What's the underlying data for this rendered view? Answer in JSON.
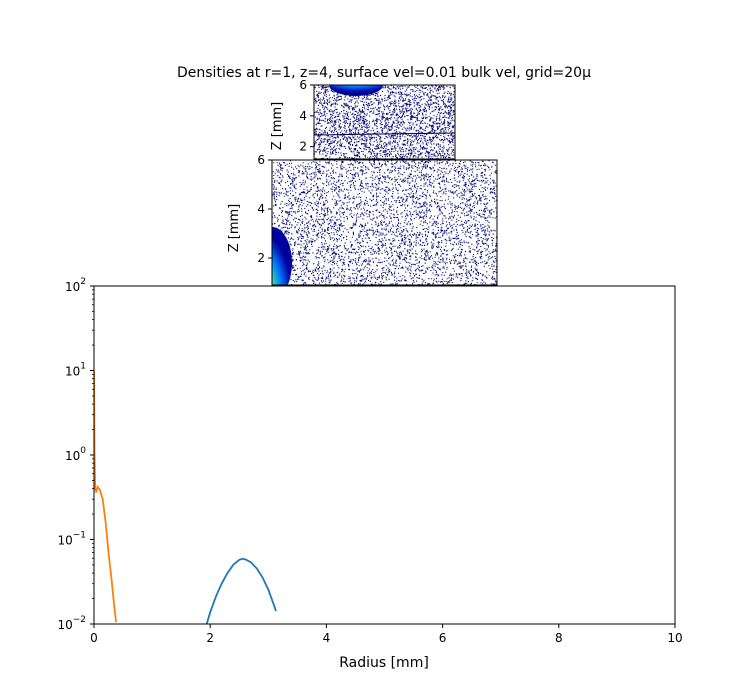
{
  "title": "Densities at r=1, z=4, surface vel=0.01 bulk vel, grid=20μ",
  "colors": {
    "blue": "#1f77b4",
    "orange": "#ff7f0e",
    "dot": "#0a0a78"
  },
  "chart_data": [
    {
      "type": "line",
      "xlabel": "Radius [mm]",
      "ylabel": "",
      "xlim": [
        0,
        10
      ],
      "ylim": [
        0.01,
        100
      ],
      "yscale": "log",
      "x_ticks": [
        0,
        2,
        4,
        6,
        8,
        10
      ],
      "x_tick_labels": [
        "0",
        "2",
        "4",
        "6",
        "8",
        "10"
      ],
      "y_ticks": [
        0.01,
        0.1,
        1,
        10,
        100
      ],
      "y_tick_labels": [
        "10^-2",
        "10^-1",
        "10^0",
        "10^1",
        "10^2"
      ],
      "series": [
        {
          "color": "#1f77b4",
          "x": [
            1.94,
            2.0,
            2.1,
            2.2,
            2.3,
            2.4,
            2.5,
            2.55,
            2.6,
            2.7,
            2.8,
            2.9,
            3.0,
            3.1,
            3.13
          ],
          "y": [
            0.01,
            0.0138,
            0.0213,
            0.0303,
            0.0404,
            0.0504,
            0.0575,
            0.059,
            0.0585,
            0.0537,
            0.0455,
            0.0356,
            0.0255,
            0.0165,
            0.0143
          ]
        },
        {
          "color": "#ff7f0e",
          "x": [
            0.0,
            0.01,
            0.02,
            0.04,
            0.06,
            0.1,
            0.15,
            0.2,
            0.25,
            0.3,
            0.35,
            0.38
          ],
          "y": [
            10.0,
            1.0,
            0.4,
            0.36,
            0.42,
            0.39,
            0.3,
            0.16,
            0.07,
            0.035,
            0.016,
            0.0105
          ]
        }
      ]
    },
    {
      "type": "heatmap",
      "ylabel": "Z [mm]",
      "y_ticks": [
        2,
        4,
        6
      ],
      "y_tick_labels": [
        "2",
        "4",
        "6"
      ],
      "ylim": [
        0.9,
        6
      ],
      "blob": "bottom-left"
    },
    {
      "type": "heatmap",
      "ylabel": "Z [mm]",
      "y_ticks": [
        2,
        4,
        6
      ],
      "y_tick_labels": [
        "2",
        "4",
        "6"
      ],
      "ylim": [
        1.2,
        6
      ],
      "blob": "top-center"
    }
  ]
}
